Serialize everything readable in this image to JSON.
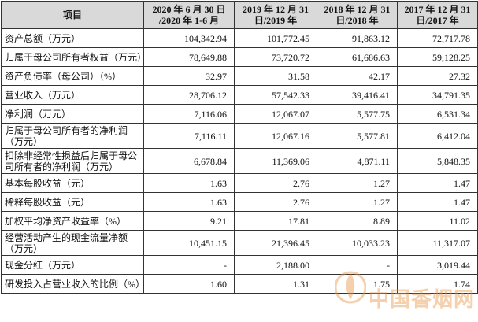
{
  "table": {
    "header": [
      [
        "项目"
      ],
      [
        "2020 年 6 月 30 日",
        "/2020 年 1-6 月"
      ],
      [
        "2019 年 12 月 31",
        "日/2019 年"
      ],
      [
        "2018 年 12 月 31",
        "日/2018 年"
      ],
      [
        "2017 年 12 月 31",
        "日/2017 年"
      ]
    ],
    "rows": [
      {
        "label": [
          "资产总额（万元）"
        ],
        "values": [
          "104,342.94",
          "101,772.45",
          "91,863.12",
          "72,717.78"
        ]
      },
      {
        "label": [
          "归属于母公司所有者权益（万元）"
        ],
        "values": [
          "78,649.88",
          "73,720.72",
          "61,686.63",
          "59,128.25"
        ]
      },
      {
        "label": [
          "资产负债率（母公司）（%）"
        ],
        "values": [
          "32.97",
          "31.58",
          "42.17",
          "27.32"
        ]
      },
      {
        "label": [
          "营业收入（万元）"
        ],
        "values": [
          "28,706.12",
          "57,542.33",
          "39,416.41",
          "34,791.35"
        ]
      },
      {
        "label": [
          "净利润（万元）"
        ],
        "values": [
          "7,116.06",
          "12,067.07",
          "5,577.75",
          "6,531.34"
        ]
      },
      {
        "label": [
          "归属于母公司所有者的净利润",
          "（万元）"
        ],
        "values": [
          "7,116.11",
          "12,067.16",
          "5,577.81",
          "6,412.04"
        ]
      },
      {
        "label": [
          "扣除非经常性损益后归属于母公",
          "司所有者的净利润（万元）"
        ],
        "values": [
          "6,678.84",
          "11,369.06",
          "4,871.11",
          "5,848.35"
        ]
      },
      {
        "label": [
          "基本每股收益（元）"
        ],
        "values": [
          "1.63",
          "2.76",
          "1.27",
          "1.47"
        ]
      },
      {
        "label": [
          "稀释每股收益（元）"
        ],
        "values": [
          "1.63",
          "2.76",
          "1.27",
          "1.47"
        ]
      },
      {
        "label": [
          "加权平均净资产收益率（%）"
        ],
        "values": [
          "9.21",
          "17.81",
          "8.89",
          "11.02"
        ]
      },
      {
        "label": [
          "经营活动产生的现金流量净额",
          "（万元）"
        ],
        "values": [
          "10,451.15",
          "21,396.45",
          "10,033.23",
          "11,317.07"
        ]
      },
      {
        "label": [
          "现金分红（万元）"
        ],
        "values": [
          "-",
          "2,188.00",
          "-",
          "3,019.44"
        ]
      },
      {
        "label": [
          "研发投入占营业收入的比例（%）"
        ],
        "values": [
          "1.60",
          "1.31",
          "1.75",
          "1.74"
        ]
      }
    ]
  },
  "watermark": "中国香烟网"
}
